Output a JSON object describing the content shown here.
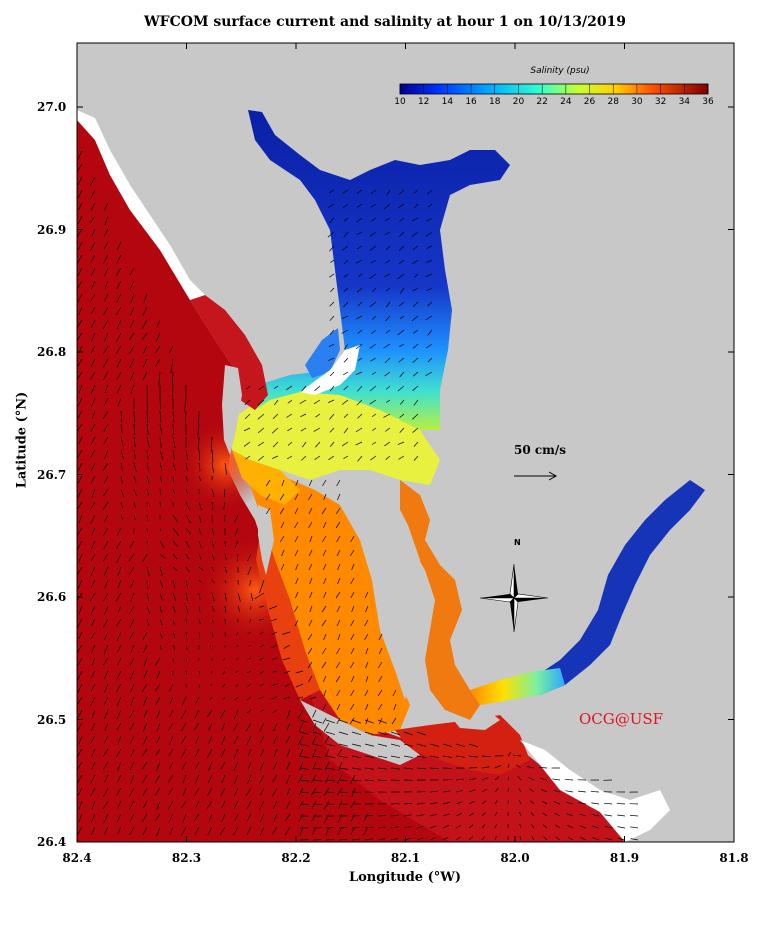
{
  "title": "WFCOM surface current and salinity at hour 1 on 10/13/2019",
  "xlabel": "Longitude (°W)",
  "ylabel": "Latitude (°N)",
  "x_ticks": [
    "82.4",
    "82.3",
    "82.2",
    "82.1",
    "82.0",
    "81.9",
    "81.8"
  ],
  "y_ticks": [
    "27.0",
    "26.9",
    "26.8",
    "26.7",
    "26.6",
    "26.5",
    "26.4"
  ],
  "colorbar": {
    "title": "Salinity (psu)",
    "ticks": [
      "10",
      "12",
      "14",
      "16",
      "18",
      "20",
      "22",
      "24",
      "26",
      "28",
      "30",
      "32",
      "34",
      "36"
    ],
    "range": [
      10,
      36
    ]
  },
  "scale_vector_label": "50 cm/s",
  "credit": "OCG@USF",
  "north_label": "N",
  "colors": {
    "land": "#c8c8c8",
    "gulf": "#b4060f",
    "fresh": "#0a1fa6"
  }
}
